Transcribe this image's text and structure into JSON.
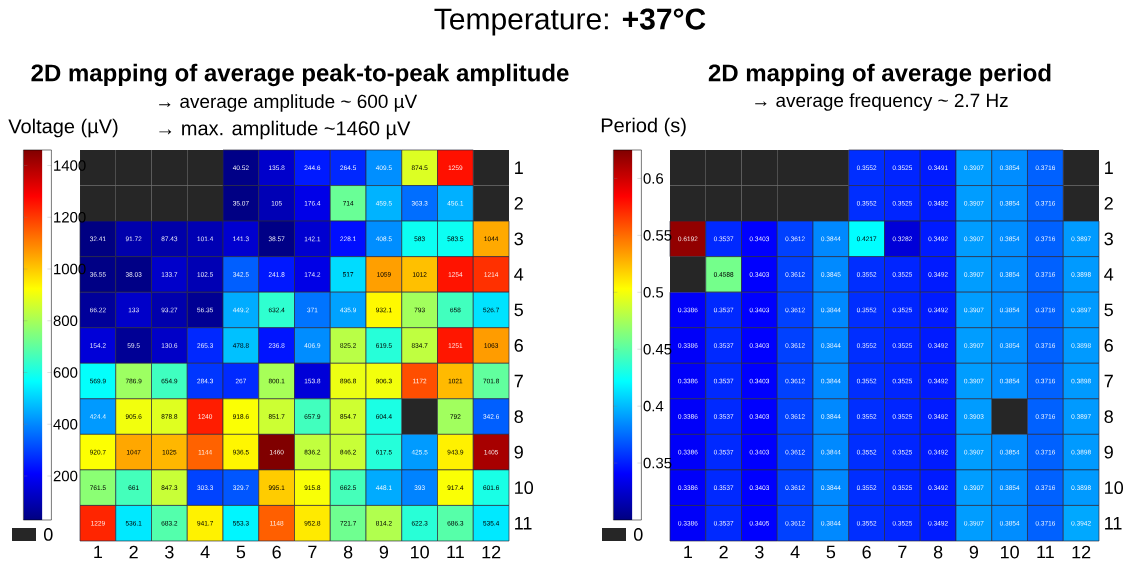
{
  "chart_data": [
    {
      "type": "heatmap",
      "title": "2D mapping of average peak-to-peak amplitude",
      "subtitle": "→ average amplitude ~ 600 µV",
      "clabel": "Voltage (µV)",
      "annotations": [
        "Temperature: **+37°C**",
        "→ max. amplitude ~1460 µV",
        "0"
      ],
      "categories": [
        "1",
        "2",
        "3",
        "4",
        "5",
        "6",
        "7",
        "8",
        "9",
        "10",
        "11",
        "12"
      ],
      "y_categories": [
        "1",
        "2",
        "3",
        "4",
        "5",
        "6",
        "7",
        "8",
        "9",
        "10",
        "11"
      ],
      "cells": [
        [
          null,
          null,
          null,
          null,
          40.52,
          135.8,
          244.6,
          264.5,
          409.5,
          874.5,
          1259,
          null
        ],
        [
          null,
          null,
          null,
          null,
          35.07,
          105,
          176.4,
          714,
          459.5,
          363.3,
          456.1,
          null
        ],
        [
          32.41,
          91.72,
          87.43,
          101.4,
          141.3,
          38.57,
          142.1,
          228.1,
          408.5,
          583,
          583.5,
          1044
        ],
        [
          36.55,
          38.03,
          133.7,
          102.5,
          342.5,
          241.8,
          174.2,
          517,
          1059,
          1012,
          1254,
          1214
        ],
        [
          66.22,
          133,
          93.27,
          56.35,
          449.2,
          632.4,
          371,
          435.9,
          932.1,
          793,
          658,
          526.7
        ],
        [
          154.2,
          59.5,
          130.6,
          265.3,
          478.8,
          236.8,
          406.9,
          825.2,
          619.5,
          834.7,
          1251,
          1063
        ],
        [
          569.9,
          786.9,
          654.9,
          284.3,
          267,
          800.1,
          153.8,
          896.8,
          906.3,
          1172,
          1021,
          701.8
        ],
        [
          424.4,
          905.6,
          878.8,
          1240,
          918.6,
          851.7,
          657.9,
          854.7,
          604.4,
          null,
          792,
          342.6
        ],
        [
          920.7,
          1047,
          1025,
          1144,
          936.5,
          1460,
          836.2,
          846.2,
          617.5,
          425.5,
          943.9,
          1405
        ],
        [
          761.5,
          661,
          847.3,
          303.3,
          329.7,
          995.1,
          915.8,
          662.5,
          448.1,
          393,
          917.4,
          601.6
        ],
        [
          1229,
          536.1,
          683.2,
          941.7,
          553.3,
          1148,
          952.8,
          721.7,
          814.2,
          622.3,
          686.3,
          535.4
        ]
      ],
      "clim": [
        30,
        1460
      ],
      "cticks": [
        200,
        400,
        600,
        800,
        1000,
        1200,
        1400
      ],
      "data_labels": true
    },
    {
      "type": "heatmap",
      "title": "2D mapping of average period",
      "subtitle": "→ average frequency ~ 2.7 Hz",
      "clabel": "Period (s)",
      "annotations": [
        "0"
      ],
      "categories": [
        "1",
        "2",
        "3",
        "4",
        "5",
        "6",
        "7",
        "8",
        "9",
        "10",
        "11",
        "12"
      ],
      "y_categories": [
        "1",
        "2",
        "3",
        "4",
        "5",
        "6",
        "7",
        "8",
        "9",
        "10",
        "11"
      ],
      "cells": [
        [
          null,
          null,
          null,
          null,
          null,
          0.3552,
          0.3525,
          0.3491,
          0.3907,
          0.3854,
          0.3716,
          null
        ],
        [
          null,
          null,
          null,
          null,
          null,
          0.3552,
          0.3525,
          0.3492,
          0.3907,
          0.3854,
          0.3716,
          null
        ],
        [
          0.6192,
          0.3537,
          0.3403,
          0.3612,
          0.3844,
          0.4217,
          0.3282,
          0.3492,
          0.3907,
          0.3854,
          0.3716,
          0.3897
        ],
        [
          null,
          0.4588,
          0.3403,
          0.3612,
          0.3845,
          0.3552,
          0.3525,
          0.3492,
          0.3907,
          0.3854,
          0.3716,
          0.3898
        ],
        [
          0.3386,
          0.3537,
          0.3403,
          0.3612,
          0.3844,
          0.3552,
          0.3525,
          0.3492,
          0.3907,
          0.3854,
          0.3716,
          0.3897
        ],
        [
          0.3386,
          0.3537,
          0.3403,
          0.3612,
          0.3844,
          0.3552,
          0.3525,
          0.3492,
          0.3907,
          0.3854,
          0.3716,
          0.3898
        ],
        [
          0.3386,
          0.3537,
          0.3403,
          0.3612,
          0.3844,
          0.3552,
          0.3525,
          0.3492,
          0.3907,
          0.3854,
          0.3716,
          0.3898
        ],
        [
          0.3386,
          0.3537,
          0.3403,
          0.3612,
          0.3844,
          0.3552,
          0.3525,
          0.3492,
          0.3903,
          null,
          0.3716,
          0.3897
        ],
        [
          0.3386,
          0.3537,
          0.3403,
          0.3612,
          0.3844,
          0.3552,
          0.3525,
          0.3492,
          0.3907,
          0.3854,
          0.3716,
          0.3898
        ],
        [
          0.3386,
          0.3537,
          0.3403,
          0.3612,
          0.3844,
          0.3552,
          0.3525,
          0.3492,
          0.3907,
          0.3854,
          0.3716,
          0.3898
        ],
        [
          0.3386,
          0.3537,
          0.3405,
          0.3612,
          0.3844,
          0.3552,
          0.3525,
          0.3492,
          0.3907,
          0.3854,
          0.3716,
          0.3942
        ]
      ],
      "clim": [
        0.3,
        0.625
      ],
      "cticks": [
        0.35,
        0.4,
        0.45,
        0.5,
        0.55,
        0.6
      ],
      "data_labels": true
    }
  ]
}
